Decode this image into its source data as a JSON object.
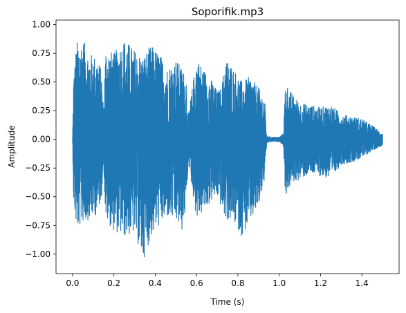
{
  "chart_data": {
    "type": "line",
    "title": "Soporifik.mp3",
    "xlabel": "Time (s)",
    "ylabel": "Amplitude",
    "xlim": [
      -0.08,
      1.58
    ],
    "ylim": [
      -1.17,
      1.04
    ],
    "xticks": [
      0.0,
      0.2,
      0.4,
      0.6,
      0.8,
      1.0,
      1.2,
      1.4
    ],
    "xtick_labels": [
      "0.0",
      "0.2",
      "0.4",
      "0.6",
      "0.8",
      "1.0",
      "1.2",
      "1.4"
    ],
    "yticks": [
      -1.0,
      -0.75,
      -0.5,
      -0.25,
      0.0,
      0.25,
      0.5,
      0.75,
      1.0
    ],
    "ytick_labels": [
      "−1.00",
      "−0.75",
      "−0.50",
      "−0.25",
      "0.00",
      "0.25",
      "0.50",
      "0.75",
      "1.00"
    ],
    "grid": false,
    "series": [
      {
        "name": "waveform",
        "color": "#1f77b4",
        "x_start": 0.0,
        "x_end": 1.5,
        "envelope": {
          "t": [
            0.0,
            0.005,
            0.02,
            0.05,
            0.08,
            0.12,
            0.14,
            0.15,
            0.16,
            0.2,
            0.25,
            0.3,
            0.34,
            0.38,
            0.42,
            0.46,
            0.5,
            0.53,
            0.55,
            0.56,
            0.6,
            0.64,
            0.68,
            0.7,
            0.72,
            0.74,
            0.78,
            0.82,
            0.86,
            0.9,
            0.93,
            0.94,
            0.96,
            1.0,
            1.02,
            1.03,
            1.06,
            1.1,
            1.15,
            1.2,
            1.25,
            1.3,
            1.35,
            1.4,
            1.45,
            1.5
          ],
          "upper": [
            0.0,
            0.55,
            0.85,
            0.88,
            0.75,
            0.72,
            0.6,
            0.25,
            0.8,
            0.75,
            0.88,
            0.78,
            0.72,
            0.82,
            0.75,
            0.62,
            0.7,
            0.62,
            0.55,
            0.2,
            0.72,
            0.6,
            0.5,
            0.42,
            0.45,
            0.72,
            0.62,
            0.5,
            0.55,
            0.45,
            0.35,
            0.03,
            0.02,
            0.02,
            0.05,
            0.5,
            0.4,
            0.32,
            0.3,
            0.28,
            0.3,
            0.22,
            0.2,
            0.18,
            0.12,
            0.05
          ],
          "lower": [
            0.0,
            -0.55,
            -0.8,
            -0.72,
            -0.7,
            -0.65,
            -0.5,
            -0.2,
            -0.7,
            -0.8,
            -0.85,
            -0.82,
            -1.06,
            -0.85,
            -0.75,
            -0.68,
            -0.72,
            -0.8,
            -0.6,
            -0.2,
            -0.7,
            -0.62,
            -0.52,
            -0.5,
            -0.6,
            -0.7,
            -0.72,
            -0.85,
            -0.72,
            -0.6,
            -0.35,
            -0.03,
            -0.02,
            -0.02,
            -0.05,
            -0.5,
            -0.38,
            -0.35,
            -0.3,
            -0.32,
            -0.35,
            -0.22,
            -0.2,
            -0.16,
            -0.1,
            -0.05
          ]
        }
      }
    ]
  }
}
